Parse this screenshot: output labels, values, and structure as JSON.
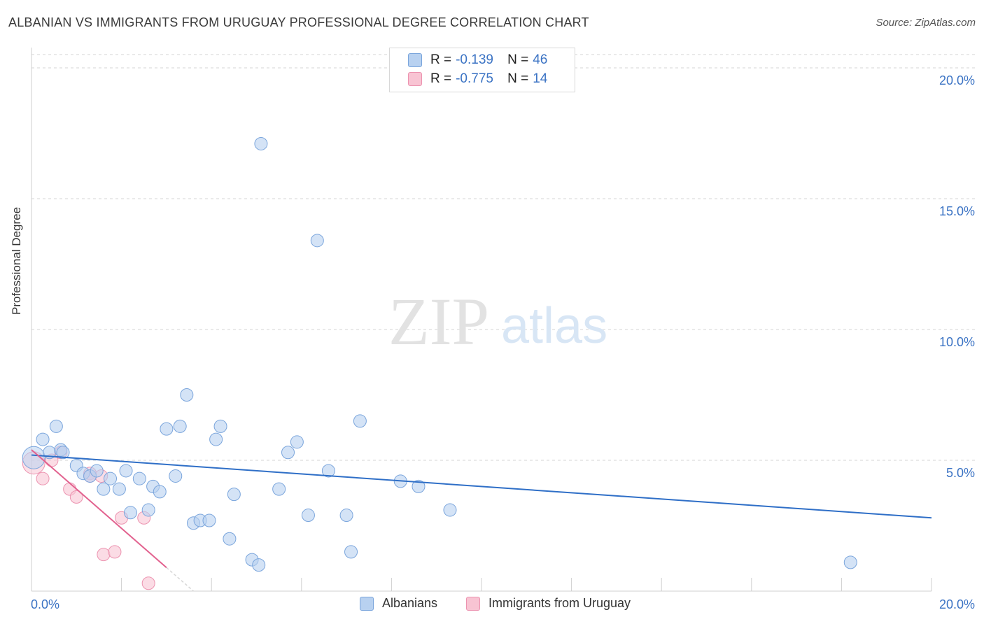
{
  "title": "ALBANIAN VS IMMIGRANTS FROM URUGUAY PROFESSIONAL DEGREE CORRELATION CHART",
  "source": "Source: ZipAtlas.com",
  "watermark": {
    "zip": "ZIP",
    "atlas": "atlas"
  },
  "legend_top": {
    "rows": [
      {
        "r_label": "R =",
        "r_value": "-0.139",
        "n_label": "N =",
        "n_value": "46"
      },
      {
        "r_label": "R =",
        "r_value": "-0.775",
        "n_label": "N =",
        "n_value": "14"
      }
    ]
  },
  "legend_bottom": [
    {
      "label": "Albanians"
    },
    {
      "label": "Immigrants from Uruguay"
    }
  ],
  "colors": {
    "blue_fill": "#b8d1f0",
    "blue_stroke": "#7aa5dc",
    "blue_line": "#2f6fc7",
    "pink_fill": "#f8c4d3",
    "pink_stroke": "#ec93b0",
    "pink_line": "#e2628f",
    "tick_label": "#3b73c4",
    "grid": "#d6d6d6"
  },
  "chart_data": {
    "type": "scatter",
    "title": "ALBANIAN VS IMMIGRANTS FROM URUGUAY PROFESSIONAL DEGREE CORRELATION CHART",
    "xlabel": "",
    "ylabel": "Professional Degree",
    "xlim": [
      0,
      20
    ],
    "ylim": [
      0,
      20
    ],
    "x_tick_labels": [
      "0.0%",
      "20.0%"
    ],
    "y_ticks": [
      5,
      10,
      15,
      20
    ],
    "y_tick_labels": [
      "5.0%",
      "10.0%",
      "15.0%",
      "20.0%"
    ],
    "grid": true,
    "legend_position": "top-center",
    "series": [
      {
        "name": "Albanians",
        "points": [
          {
            "x": 0.05,
            "y": 5.1,
            "large": true
          },
          {
            "x": 0.25,
            "y": 5.8
          },
          {
            "x": 0.4,
            "y": 5.3
          },
          {
            "x": 0.55,
            "y": 6.3
          },
          {
            "x": 0.65,
            "y": 5.4
          },
          {
            "x": 0.7,
            "y": 5.3
          },
          {
            "x": 1.0,
            "y": 4.8
          },
          {
            "x": 1.15,
            "y": 4.5
          },
          {
            "x": 1.3,
            "y": 4.4
          },
          {
            "x": 1.45,
            "y": 4.6
          },
          {
            "x": 1.6,
            "y": 3.9
          },
          {
            "x": 1.75,
            "y": 4.3
          },
          {
            "x": 1.95,
            "y": 3.9
          },
          {
            "x": 2.1,
            "y": 4.6
          },
          {
            "x": 2.2,
            "y": 3.0
          },
          {
            "x": 2.4,
            "y": 4.3
          },
          {
            "x": 2.6,
            "y": 3.1
          },
          {
            "x": 2.7,
            "y": 4.0
          },
          {
            "x": 2.85,
            "y": 3.8
          },
          {
            "x": 3.0,
            "y": 6.2
          },
          {
            "x": 3.2,
            "y": 4.4
          },
          {
            "x": 3.3,
            "y": 6.3
          },
          {
            "x": 3.45,
            "y": 7.5
          },
          {
            "x": 3.6,
            "y": 2.6
          },
          {
            "x": 3.75,
            "y": 2.7
          },
          {
            "x": 3.95,
            "y": 2.7
          },
          {
            "x": 4.1,
            "y": 5.8
          },
          {
            "x": 4.2,
            "y": 6.3
          },
          {
            "x": 4.4,
            "y": 2.0
          },
          {
            "x": 4.5,
            "y": 3.7
          },
          {
            "x": 4.9,
            "y": 1.2
          },
          {
            "x": 5.05,
            "y": 1.0
          },
          {
            "x": 5.1,
            "y": 17.1
          },
          {
            "x": 5.5,
            "y": 3.9
          },
          {
            "x": 5.7,
            "y": 5.3
          },
          {
            "x": 5.9,
            "y": 5.7
          },
          {
            "x": 6.15,
            "y": 2.9
          },
          {
            "x": 6.35,
            "y": 13.4
          },
          {
            "x": 6.6,
            "y": 4.6
          },
          {
            "x": 7.0,
            "y": 2.9
          },
          {
            "x": 7.1,
            "y": 1.5
          },
          {
            "x": 7.3,
            "y": 6.5
          },
          {
            "x": 8.2,
            "y": 4.2
          },
          {
            "x": 8.6,
            "y": 4.0
          },
          {
            "x": 9.3,
            "y": 3.1
          },
          {
            "x": 18.2,
            "y": 1.1
          }
        ]
      },
      {
        "name": "Immigrants from Uruguay",
        "points": [
          {
            "x": 0.05,
            "y": 4.9,
            "large": true
          },
          {
            "x": 0.25,
            "y": 4.3
          },
          {
            "x": 0.45,
            "y": 5.0
          },
          {
            "x": 0.65,
            "y": 5.3
          },
          {
            "x": 0.85,
            "y": 3.9
          },
          {
            "x": 1.0,
            "y": 3.6
          },
          {
            "x": 1.3,
            "y": 4.5
          },
          {
            "x": 1.55,
            "y": 4.4
          },
          {
            "x": 1.6,
            "y": 1.4
          },
          {
            "x": 1.85,
            "y": 1.5
          },
          {
            "x": 2.0,
            "y": 2.8
          },
          {
            "x": 2.5,
            "y": 2.8
          },
          {
            "x": 2.6,
            "y": 0.3
          },
          {
            "x": 1.3,
            "y": 4.4
          }
        ]
      }
    ],
    "trend_lines": [
      {
        "series": "Albanians",
        "x_start": 0,
        "y_start": 5.2,
        "x_end": 20,
        "y_end": 2.8
      },
      {
        "series": "Immigrants from Uruguay",
        "x_start": 0,
        "y_start": 5.4,
        "x_end": 3.0,
        "y_end": 0.9,
        "dashed_extension_to_x": 3.6
      }
    ]
  }
}
